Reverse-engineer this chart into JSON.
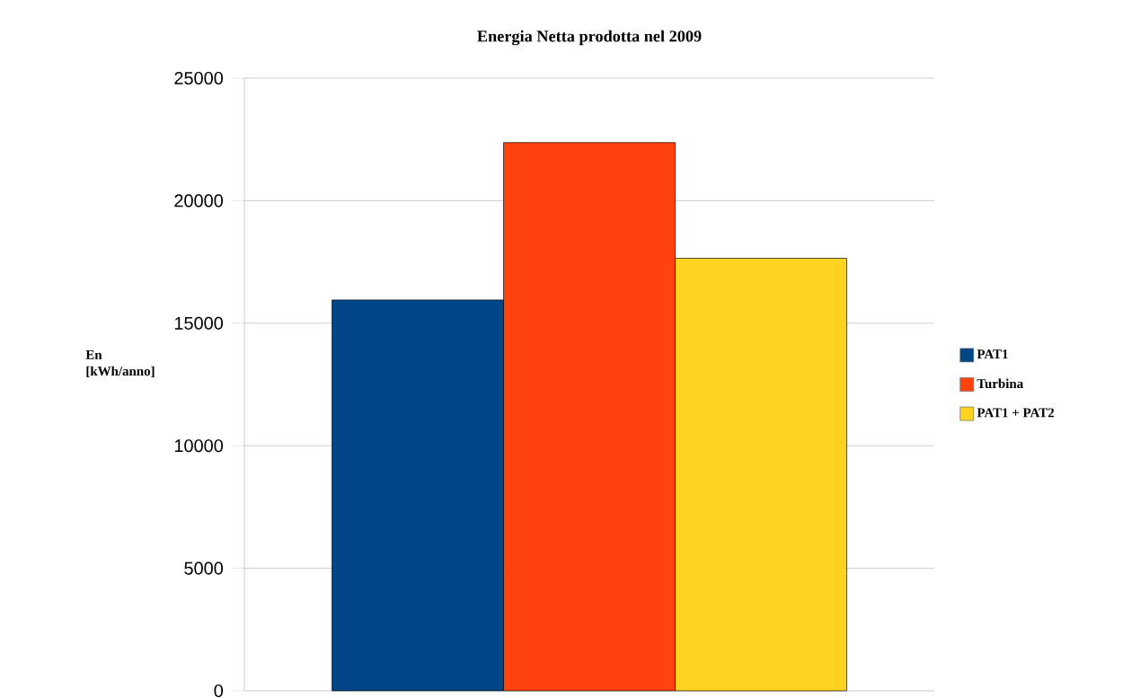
{
  "chart_data": {
    "type": "bar",
    "title": "Energia Netta prodotta nel 2009",
    "ylabel": "En [kWh/anno]",
    "categories": [
      null
    ],
    "series": [
      {
        "name": "PAT1",
        "color": "#004586",
        "values": [
          15950
        ]
      },
      {
        "name": "Turbina",
        "color": "#ff420e",
        "values": [
          22370
        ]
      },
      {
        "name": "PAT1 + PAT2",
        "color": "#ffd320",
        "values": [
          17650
        ]
      }
    ],
    "ylim": [
      0,
      25000
    ],
    "yticks": [
      0,
      5000,
      10000,
      15000,
      20000,
      25000
    ],
    "grid": "y",
    "legend": "right"
  }
}
